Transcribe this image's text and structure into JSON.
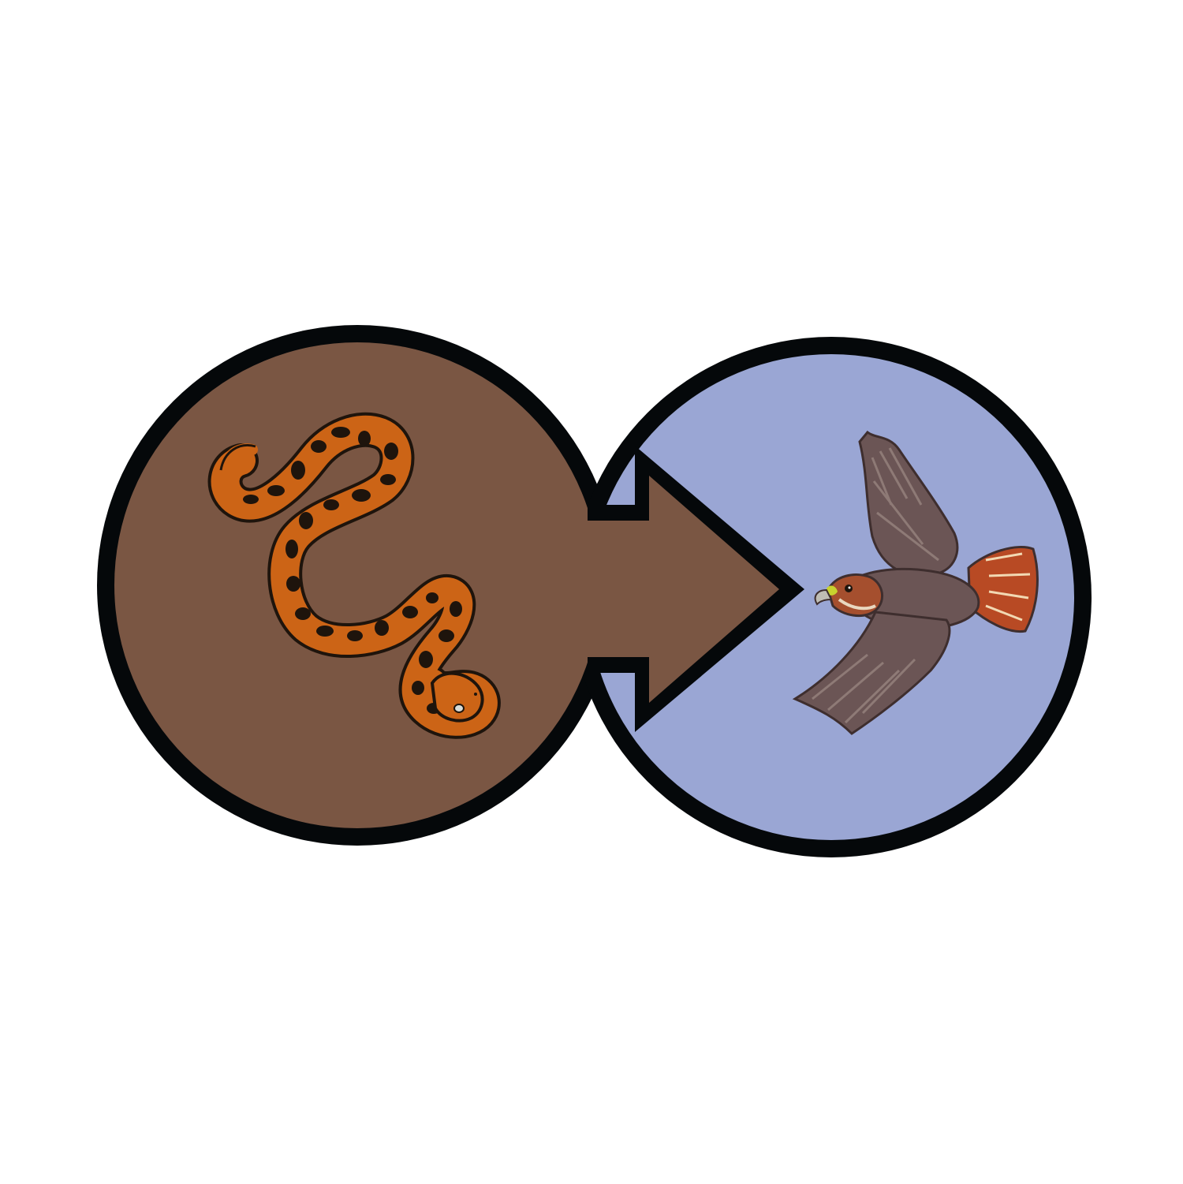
{
  "diagram": {
    "type": "food-chain-link",
    "relation": "eaten-by",
    "nodes": [
      {
        "id": "prey",
        "icon": "snake-icon",
        "background": "#7a5643"
      },
      {
        "id": "predator",
        "icon": "hawk-icon",
        "background": "#9aa6d4"
      }
    ],
    "arrow": {
      "from": "prey",
      "to": "predator",
      "fill": "#7a5643"
    }
  },
  "colors": {
    "outline": "#05080a",
    "snake_body": "#cc6416",
    "snake_spots": "#1e140c",
    "hawk_wing": "#6b5555",
    "hawk_head": "#a54f2e",
    "hawk_tail": "#b84a24",
    "beak": "#bfbdb4",
    "cere": "#c8d22e"
  }
}
